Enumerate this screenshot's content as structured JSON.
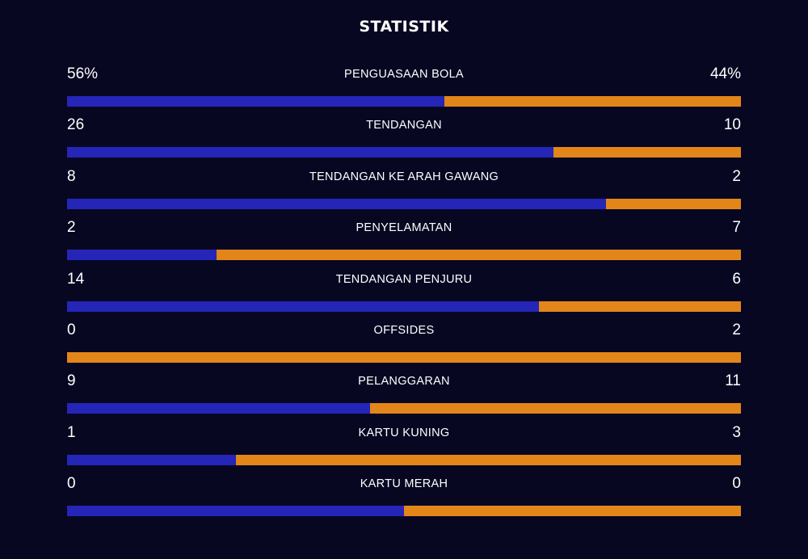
{
  "title": "STATISTIK",
  "colors": {
    "background": "#080722",
    "home": "#2525b8",
    "away": "#e2861a"
  },
  "stats": [
    {
      "label": "PENGUASAAN BOLA",
      "home": "56%",
      "away": "44%",
      "home_share": 0.56
    },
    {
      "label": "TENDANGAN",
      "home": "26",
      "away": "10",
      "home_share": 0.7222
    },
    {
      "label": "TENDANGAN KE ARAH GAWANG",
      "home": "8",
      "away": "2",
      "home_share": 0.8
    },
    {
      "label": "PENYELAMATAN",
      "home": "2",
      "away": "7",
      "home_share": 0.2222
    },
    {
      "label": "TENDANGAN PENJURU",
      "home": "14",
      "away": "6",
      "home_share": 0.7
    },
    {
      "label": "OFFSIDES",
      "home": "0",
      "away": "2",
      "home_share": 0
    },
    {
      "label": "PELANGGARAN",
      "home": "9",
      "away": "11",
      "home_share": 0.45
    },
    {
      "label": "KARTU KUNING",
      "home": "1",
      "away": "3",
      "home_share": 0.25
    },
    {
      "label": "KARTU MERAH",
      "home": "0",
      "away": "0",
      "home_share": 0.5
    }
  ]
}
